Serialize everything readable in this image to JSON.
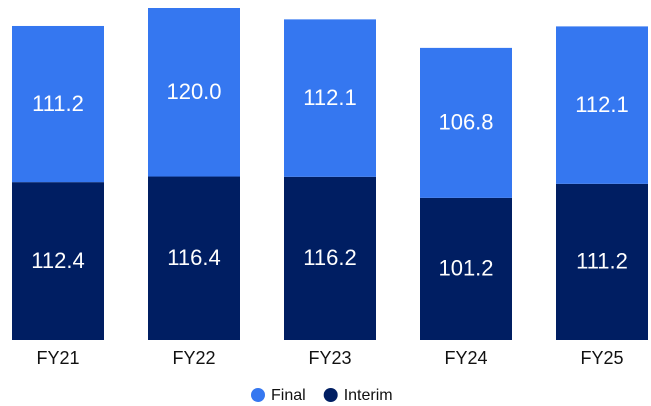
{
  "chart_data": {
    "type": "stacked_bar",
    "categories": [
      "FY21",
      "FY22",
      "FY23",
      "FY24",
      "FY25"
    ],
    "series": [
      {
        "name": "Interim",
        "color": "#001e62",
        "values": [
          112.4,
          116.4,
          116.2,
          101.2,
          111.2
        ]
      },
      {
        "name": "Final",
        "color": "#3577f0",
        "values": [
          111.2,
          120.0,
          112.1,
          106.8,
          112.1
        ],
        "value_labels": [
          "111.2",
          "120.0",
          "112.1",
          "106.8",
          "112.1"
        ]
      }
    ],
    "legend_order": [
      "Final",
      "Interim"
    ],
    "legend": "bottom"
  }
}
